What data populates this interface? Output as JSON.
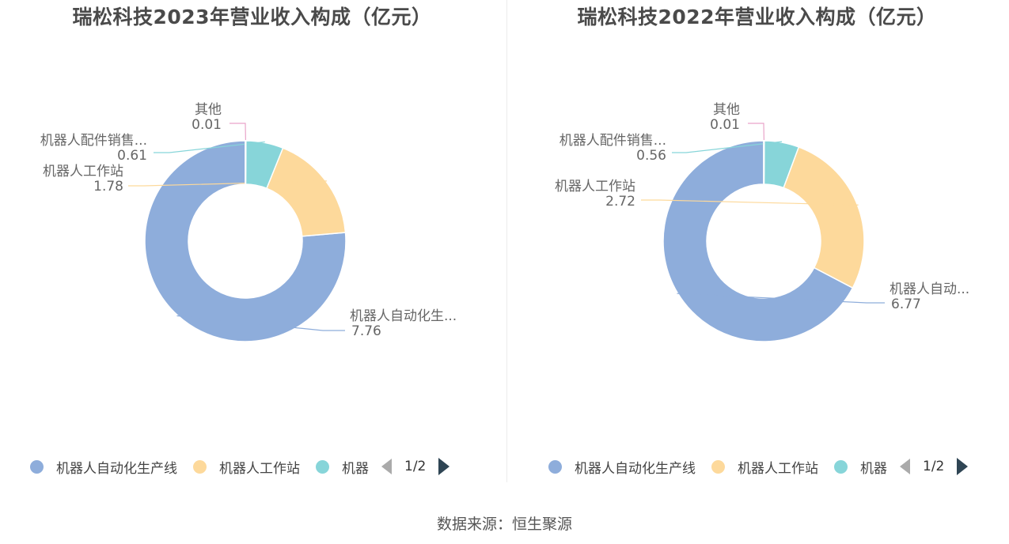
{
  "chart_data": [
    {
      "type": "pie",
      "title": "瑞松科技2023年营业收入构成（亿元）",
      "series": [
        {
          "name": "机器人自动化生产线",
          "label": "机器人自动化生...",
          "value": 7.76,
          "value_label": "7.76",
          "color": "#8eaddb"
        },
        {
          "name": "机器人工作站",
          "label": "机器人工作站",
          "value": 1.78,
          "value_label": "1.78",
          "color": "#fdd99b"
        },
        {
          "name": "机器人配件销售",
          "label": "机器人配件销售...",
          "value": 0.61,
          "value_label": "0.61",
          "color": "#87d5d9"
        },
        {
          "name": "其他",
          "label": "其他",
          "value": 0.01,
          "value_label": "0.01",
          "color": "#e9a5c9"
        }
      ],
      "legend": {
        "placement": "bottom",
        "items": [
          "机器人自动化生产线",
          "机器人工作站",
          "机器"
        ],
        "page": "1/2"
      }
    },
    {
      "type": "pie",
      "title": "瑞松科技2022年营业收入构成（亿元）",
      "series": [
        {
          "name": "机器人自动化生产线",
          "label": "机器人自动...",
          "value": 6.77,
          "value_label": "6.77",
          "color": "#8eaddb"
        },
        {
          "name": "机器人工作站",
          "label": "机器人工作站",
          "value": 2.72,
          "value_label": "2.72",
          "color": "#fdd99b"
        },
        {
          "name": "机器人配件销售",
          "label": "机器人配件销售...",
          "value": 0.56,
          "value_label": "0.56",
          "color": "#87d5d9"
        },
        {
          "name": "其他",
          "label": "其他",
          "value": 0.01,
          "value_label": "0.01",
          "color": "#e9a5c9"
        }
      ],
      "legend": {
        "placement": "bottom",
        "items": [
          "机器人自动化生产线",
          "机器人工作站",
          "机器"
        ],
        "page": "1/2"
      }
    }
  ],
  "footer": {
    "source": "数据来源：恒生聚源"
  }
}
